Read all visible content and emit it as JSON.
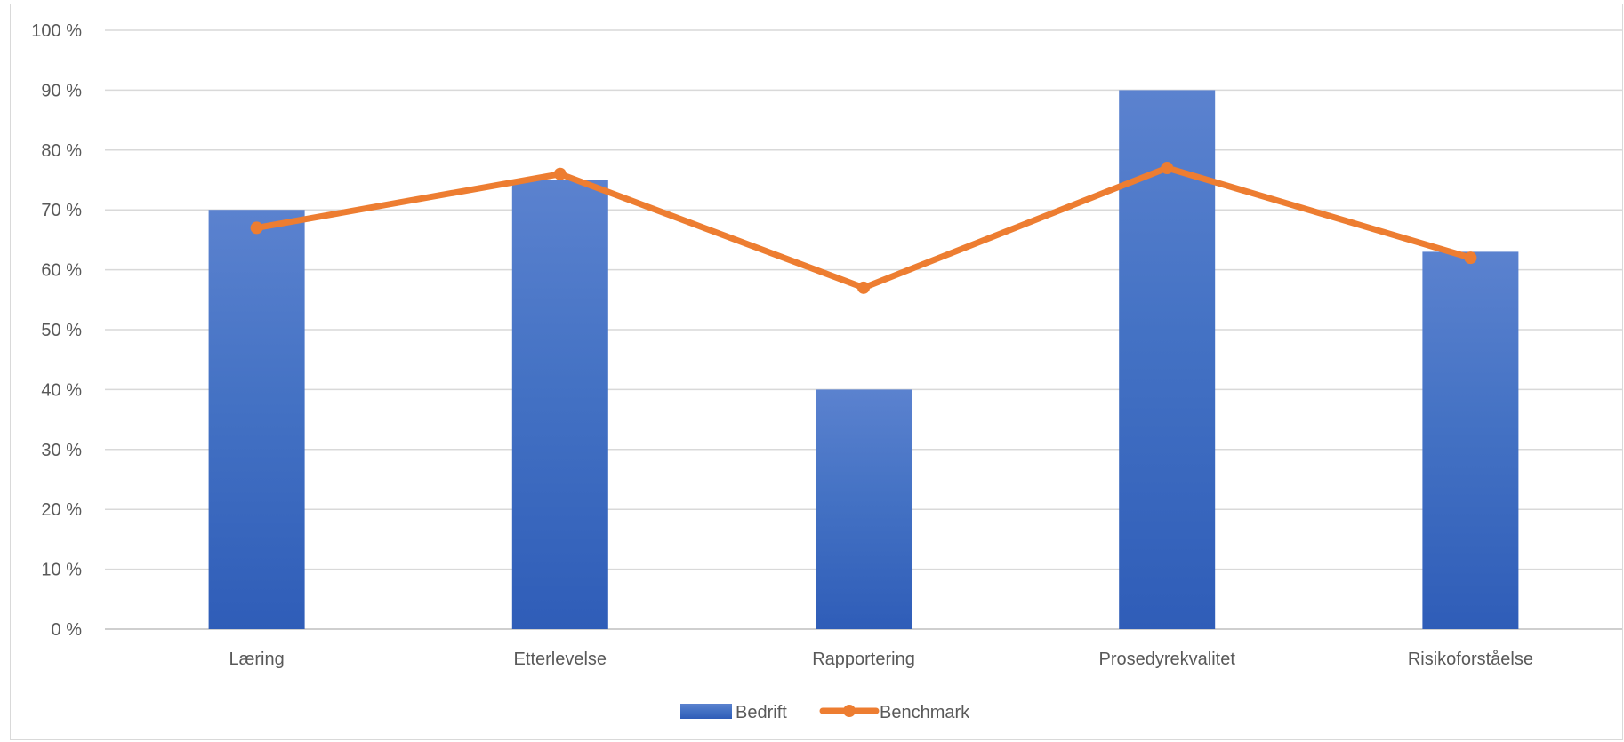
{
  "chart_data": {
    "type": "bar",
    "categories": [
      "Læring",
      "Etterlevelse",
      "Rapportering",
      "Prosedyrekvalitet",
      "Risikoforståelse"
    ],
    "series": [
      {
        "name": "Bedrift",
        "type": "bar",
        "values": [
          70,
          75,
          40,
          90,
          63
        ],
        "color": "#4472C4"
      },
      {
        "name": "Benchmark",
        "type": "line",
        "values": [
          67,
          76,
          57,
          77,
          62
        ],
        "color": "#ED7D31"
      }
    ],
    "yticks": [
      "0 %",
      "10 %",
      "20 %",
      "30 %",
      "40 %",
      "50 %",
      "60 %",
      "70 %",
      "80 %",
      "90 %",
      "100 %"
    ],
    "ylim": [
      0,
      100
    ],
    "grid": true,
    "legend_position": "bottom"
  }
}
